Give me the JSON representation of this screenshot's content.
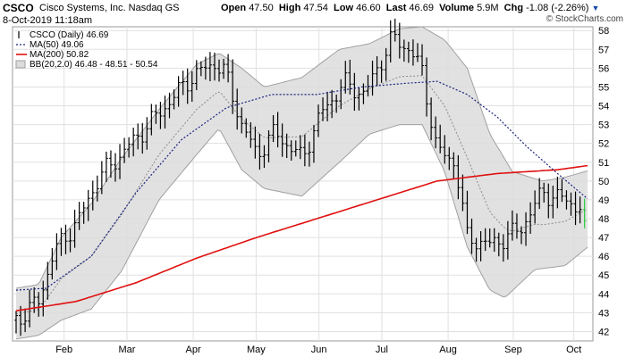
{
  "header": {
    "symbol": "CSCO",
    "company": "Cisco Systems, Inc.  Nasdaq GS",
    "date": "8-Oct-2019 11:18am",
    "open_label": "Open",
    "open_value": "47.50",
    "high_label": "High",
    "high_value": "47.54",
    "low_label": "Low",
    "low_value": "46.60",
    "last_label": "Last",
    "last_value": "46.69",
    "volume_label": "Volume",
    "volume_value": "5.9M",
    "chg_label": "Chg",
    "chg_value": "-1.08 (-2.26%)",
    "watermark": "© StockCharts.com"
  },
  "colors": {
    "price_bar": "#000000",
    "last_bar": "#2ecc40",
    "ma50": "#1a237e",
    "ma200": "#e01010",
    "bb_fill": "#dcdcdc",
    "bb_edge": "#a0a0a0",
    "bb_mid": "#8a8a8a",
    "grid": "#e0e0e0"
  },
  "chart_data": {
    "type": "line",
    "ylim": [
      41.5,
      58.2
    ],
    "yticks": [
      42,
      43,
      44,
      45,
      46,
      47,
      48,
      49,
      50,
      51,
      52,
      53,
      54,
      55,
      56,
      57,
      58
    ],
    "xticks": [
      "Feb",
      "Mar",
      "Apr",
      "May",
      "Jun",
      "Jul",
      "Aug",
      "Sep",
      "Oct"
    ],
    "legend": [
      {
        "label": "CSCO (Daily) 46.69",
        "color": "#000000",
        "style": "bar"
      },
      {
        "label": "MA(50) 49.06",
        "color": "#1a237e",
        "style": "dotted"
      },
      {
        "label": "MA(200) 50.82",
        "color": "#e01010",
        "style": "solid"
      },
      {
        "label": "BB(20,2.0) 46.48 - 48.51 - 50.54",
        "color": "#a0a0a0",
        "style": "fill"
      }
    ],
    "price_anchors": [
      {
        "x": 0,
        "y": 42.6
      },
      {
        "x": 15,
        "y": 43.6
      },
      {
        "x": 25,
        "y": 46.2
      },
      {
        "x": 42,
        "y": 48.0
      },
      {
        "x": 55,
        "y": 50.2
      },
      {
        "x": 72,
        "y": 51.6
      },
      {
        "x": 95,
        "y": 53.6
      },
      {
        "x": 115,
        "y": 55.4
      },
      {
        "x": 132,
        "y": 56.3
      },
      {
        "x": 140,
        "y": 55.6
      },
      {
        "x": 150,
        "y": 53.0
      },
      {
        "x": 160,
        "y": 51.4
      },
      {
        "x": 172,
        "y": 52.6
      },
      {
        "x": 190,
        "y": 51.2
      },
      {
        "x": 203,
        "y": 53.6
      },
      {
        "x": 218,
        "y": 55.2
      },
      {
        "x": 232,
        "y": 54.6
      },
      {
        "x": 250,
        "y": 57.6
      },
      {
        "x": 262,
        "y": 57.0
      },
      {
        "x": 270,
        "y": 55.8
      },
      {
        "x": 280,
        "y": 51.6
      },
      {
        "x": 292,
        "y": 51.0
      },
      {
        "x": 300,
        "y": 47.0
      },
      {
        "x": 315,
        "y": 46.6
      },
      {
        "x": 335,
        "y": 47.4
      },
      {
        "x": 350,
        "y": 49.4
      },
      {
        "x": 365,
        "y": 49.0
      },
      {
        "x": 375,
        "y": 48.6
      },
      {
        "x": 380,
        "y": 46.5
      }
    ],
    "ma50_anchors": [
      {
        "x": 0,
        "y": 44.2
      },
      {
        "x": 20,
        "y": 44.3
      },
      {
        "x": 50,
        "y": 46.0
      },
      {
        "x": 80,
        "y": 49.4
      },
      {
        "x": 110,
        "y": 52.2
      },
      {
        "x": 140,
        "y": 53.9
      },
      {
        "x": 170,
        "y": 54.6
      },
      {
        "x": 200,
        "y": 54.6
      },
      {
        "x": 230,
        "y": 55.0
      },
      {
        "x": 260,
        "y": 55.2
      },
      {
        "x": 280,
        "y": 55.3
      },
      {
        "x": 300,
        "y": 54.6
      },
      {
        "x": 320,
        "y": 53.4
      },
      {
        "x": 340,
        "y": 51.8
      },
      {
        "x": 360,
        "y": 50.4
      },
      {
        "x": 380,
        "y": 49.06
      }
    ],
    "ma200_anchors": [
      {
        "x": 0,
        "y": 43.1
      },
      {
        "x": 40,
        "y": 43.6
      },
      {
        "x": 80,
        "y": 44.6
      },
      {
        "x": 120,
        "y": 45.9
      },
      {
        "x": 160,
        "y": 47.0
      },
      {
        "x": 200,
        "y": 48.0
      },
      {
        "x": 240,
        "y": 49.0
      },
      {
        "x": 280,
        "y": 50.0
      },
      {
        "x": 320,
        "y": 50.4
      },
      {
        "x": 360,
        "y": 50.6
      },
      {
        "x": 380,
        "y": 50.82
      }
    ],
    "bb_upper_anchors": [
      {
        "x": 0,
        "y": 44.3
      },
      {
        "x": 15,
        "y": 44.5
      },
      {
        "x": 30,
        "y": 47.0
      },
      {
        "x": 50,
        "y": 48.8
      },
      {
        "x": 70,
        "y": 51.2
      },
      {
        "x": 95,
        "y": 53.8
      },
      {
        "x": 120,
        "y": 56.2
      },
      {
        "x": 135,
        "y": 56.8
      },
      {
        "x": 150,
        "y": 56.0
      },
      {
        "x": 165,
        "y": 55.0
      },
      {
        "x": 190,
        "y": 55.5
      },
      {
        "x": 215,
        "y": 57.0
      },
      {
        "x": 235,
        "y": 57.3
      },
      {
        "x": 255,
        "y": 58.1
      },
      {
        "x": 270,
        "y": 58.2
      },
      {
        "x": 285,
        "y": 57.5
      },
      {
        "x": 300,
        "y": 56.0
      },
      {
        "x": 315,
        "y": 52.5
      },
      {
        "x": 330,
        "y": 50.5
      },
      {
        "x": 350,
        "y": 50.0
      },
      {
        "x": 365,
        "y": 50.2
      },
      {
        "x": 380,
        "y": 50.54
      }
    ],
    "bb_lower_anchors": [
      {
        "x": 0,
        "y": 41.6
      },
      {
        "x": 15,
        "y": 41.8
      },
      {
        "x": 30,
        "y": 42.6
      },
      {
        "x": 50,
        "y": 43.2
      },
      {
        "x": 70,
        "y": 45.2
      },
      {
        "x": 95,
        "y": 49.0
      },
      {
        "x": 120,
        "y": 51.4
      },
      {
        "x": 135,
        "y": 52.8
      },
      {
        "x": 150,
        "y": 50.6
      },
      {
        "x": 165,
        "y": 49.6
      },
      {
        "x": 190,
        "y": 49.2
      },
      {
        "x": 215,
        "y": 51.0
      },
      {
        "x": 235,
        "y": 52.5
      },
      {
        "x": 255,
        "y": 53.0
      },
      {
        "x": 270,
        "y": 53.0
      },
      {
        "x": 285,
        "y": 50.5
      },
      {
        "x": 300,
        "y": 46.5
      },
      {
        "x": 315,
        "y": 44.2
      },
      {
        "x": 325,
        "y": 43.8
      },
      {
        "x": 345,
        "y": 45.3
      },
      {
        "x": 365,
        "y": 45.5
      },
      {
        "x": 380,
        "y": 46.48
      }
    ]
  }
}
